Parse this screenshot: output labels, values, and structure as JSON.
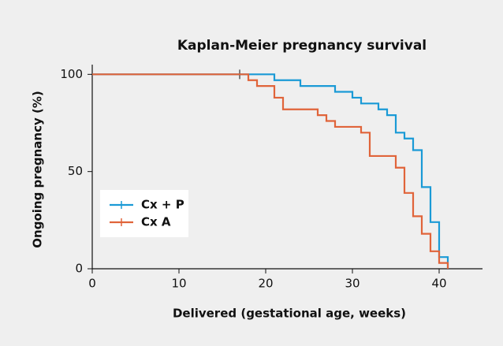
{
  "chart_data": {
    "type": "step",
    "title": "Kaplan-Meier pregnancy survival",
    "x_label": "Delivered (gestational age, weeks)",
    "y_label": "Ongoing pregnancy (%)",
    "xlim": [
      0,
      45
    ],
    "xticks": [
      0,
      10,
      20,
      30,
      40
    ],
    "ylim": [
      0,
      105
    ],
    "yticks": [
      0,
      50,
      100
    ],
    "legend": "lower left",
    "series": [
      {
        "name": "Cx + P",
        "color": "#1a9ad6",
        "x": [
          0,
          21,
          24,
          28,
          30,
          31,
          33,
          34,
          35,
          36,
          37,
          38,
          39,
          40,
          41
        ],
        "values": [
          100,
          97,
          94,
          91,
          88,
          85,
          82,
          79,
          70,
          67,
          61,
          42,
          24,
          6,
          0
        ],
        "censored_x": [
          17
        ],
        "censored_y": [
          100
        ]
      },
      {
        "name": "Cx A",
        "color": "#e0643a",
        "x": [
          0,
          18,
          19,
          21,
          22,
          26,
          27,
          28,
          31,
          32,
          35,
          36,
          37,
          38,
          39,
          40,
          41
        ],
        "values": [
          100,
          97,
          94,
          88,
          82,
          79,
          76,
          73,
          70,
          58,
          52,
          39,
          27,
          18,
          9,
          3,
          0
        ],
        "censored_x": [],
        "censored_y": []
      }
    ]
  }
}
